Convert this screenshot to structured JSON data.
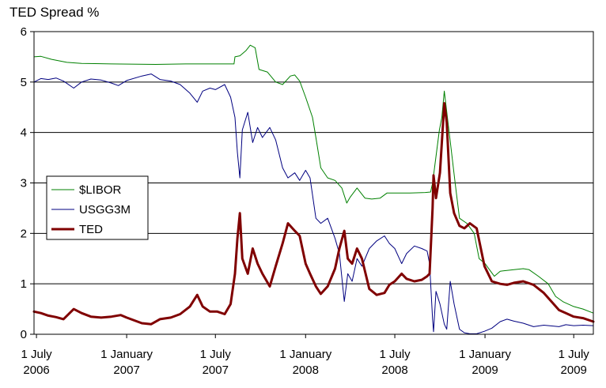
{
  "chart_data": {
    "type": "line",
    "title": "TED Spread %",
    "xlabel": "",
    "ylabel": "",
    "ylim": [
      0,
      6
    ],
    "yticks": [
      "0",
      "1",
      "2",
      "3",
      "4",
      "5",
      "6"
    ],
    "x_range": [
      "2006-06-26",
      "2009-08-10"
    ],
    "x_ticks": [
      {
        "date": "2006-07-01",
        "line1": "1 July",
        "line2": "2006"
      },
      {
        "date": "2007-01-01",
        "line1": "1 January",
        "line2": "2007"
      },
      {
        "date": "2007-07-01",
        "line1": "1 July",
        "line2": "2007"
      },
      {
        "date": "2008-01-01",
        "line1": "1 January",
        "line2": "2008"
      },
      {
        "date": "2008-07-01",
        "line1": "1 July",
        "line2": "2008"
      },
      {
        "date": "2009-01-01",
        "line1": "1 January",
        "line2": "2009"
      },
      {
        "date": "2009-07-01",
        "line1": "1 July",
        "line2": "2009"
      }
    ],
    "grid": "horizontal",
    "legend_position": "left-middle",
    "series": [
      {
        "name": "$LIBOR",
        "color": "#008000",
        "width": 1,
        "points": [
          [
            "2006-06-26",
            5.5
          ],
          [
            "2006-07-10",
            5.51
          ],
          [
            "2006-08-01",
            5.45
          ],
          [
            "2006-09-01",
            5.39
          ],
          [
            "2006-10-01",
            5.37
          ],
          [
            "2006-12-01",
            5.36
          ],
          [
            "2007-03-01",
            5.35
          ],
          [
            "2007-05-01",
            5.36
          ],
          [
            "2007-07-01",
            5.36
          ],
          [
            "2007-08-08",
            5.36
          ],
          [
            "2007-08-10",
            5.5
          ],
          [
            "2007-08-20",
            5.52
          ],
          [
            "2007-09-01",
            5.62
          ],
          [
            "2007-09-10",
            5.73
          ],
          [
            "2007-09-20",
            5.68
          ],
          [
            "2007-09-28",
            5.25
          ],
          [
            "2007-10-15",
            5.2
          ],
          [
            "2007-11-01",
            5.0
          ],
          [
            "2007-11-15",
            4.95
          ],
          [
            "2007-12-01",
            5.12
          ],
          [
            "2007-12-10",
            5.14
          ],
          [
            "2007-12-20",
            5.02
          ],
          [
            "2008-01-01",
            4.7
          ],
          [
            "2008-01-15",
            4.3
          ],
          [
            "2008-01-22",
            3.9
          ],
          [
            "2008-02-01",
            3.3
          ],
          [
            "2008-02-15",
            3.1
          ],
          [
            "2008-03-01",
            3.05
          ],
          [
            "2008-03-15",
            2.9
          ],
          [
            "2008-03-25",
            2.6
          ],
          [
            "2008-04-01",
            2.72
          ],
          [
            "2008-04-15",
            2.9
          ],
          [
            "2008-05-01",
            2.7
          ],
          [
            "2008-05-15",
            2.68
          ],
          [
            "2008-06-01",
            2.7
          ],
          [
            "2008-06-15",
            2.8
          ],
          [
            "2008-07-01",
            2.8
          ],
          [
            "2008-08-01",
            2.8
          ],
          [
            "2008-09-01",
            2.81
          ],
          [
            "2008-09-12",
            2.82
          ],
          [
            "2008-09-16",
            3.0
          ],
          [
            "2008-09-30",
            4.05
          ],
          [
            "2008-10-05",
            4.3
          ],
          [
            "2008-10-10",
            4.82
          ],
          [
            "2008-10-20",
            4.0
          ],
          [
            "2008-11-01",
            3.0
          ],
          [
            "2008-11-10",
            2.3
          ],
          [
            "2008-11-25",
            2.2
          ],
          [
            "2008-12-10",
            2.0
          ],
          [
            "2008-12-20",
            1.5
          ],
          [
            "2009-01-01",
            1.4
          ],
          [
            "2009-01-20",
            1.15
          ],
          [
            "2009-02-01",
            1.25
          ],
          [
            "2009-03-01",
            1.28
          ],
          [
            "2009-03-20",
            1.3
          ],
          [
            "2009-04-01",
            1.28
          ],
          [
            "2009-04-20",
            1.15
          ],
          [
            "2009-05-10",
            1.0
          ],
          [
            "2009-05-25",
            0.75
          ],
          [
            "2009-06-10",
            0.64
          ],
          [
            "2009-07-01",
            0.55
          ],
          [
            "2009-07-20",
            0.5
          ],
          [
            "2009-08-10",
            0.42
          ]
        ]
      },
      {
        "name": "USGG3M",
        "color": "#000080",
        "width": 1,
        "points": [
          [
            "2006-06-26",
            5.0
          ],
          [
            "2006-07-10",
            5.07
          ],
          [
            "2006-07-25",
            5.05
          ],
          [
            "2006-08-10",
            5.08
          ],
          [
            "2006-08-25",
            5.02
          ],
          [
            "2006-09-15",
            4.88
          ],
          [
            "2006-10-01",
            5.0
          ],
          [
            "2006-10-20",
            5.06
          ],
          [
            "2006-11-10",
            5.04
          ],
          [
            "2006-12-01",
            4.98
          ],
          [
            "2006-12-15",
            4.93
          ],
          [
            "2007-01-01",
            5.03
          ],
          [
            "2007-02-01",
            5.12
          ],
          [
            "2007-02-20",
            5.16
          ],
          [
            "2007-03-10",
            5.05
          ],
          [
            "2007-04-01",
            5.02
          ],
          [
            "2007-04-20",
            4.95
          ],
          [
            "2007-05-10",
            4.78
          ],
          [
            "2007-05-25",
            4.6
          ],
          [
            "2007-06-05",
            4.82
          ],
          [
            "2007-06-20",
            4.88
          ],
          [
            "2007-07-01",
            4.85
          ],
          [
            "2007-07-20",
            4.95
          ],
          [
            "2007-08-01",
            4.7
          ],
          [
            "2007-08-10",
            4.3
          ],
          [
            "2007-08-15",
            3.6
          ],
          [
            "2007-08-20",
            3.1
          ],
          [
            "2007-08-25",
            4.05
          ],
          [
            "2007-09-05",
            4.4
          ],
          [
            "2007-09-15",
            3.8
          ],
          [
            "2007-09-25",
            4.1
          ],
          [
            "2007-10-05",
            3.9
          ],
          [
            "2007-10-20",
            4.1
          ],
          [
            "2007-11-01",
            3.85
          ],
          [
            "2007-11-15",
            3.3
          ],
          [
            "2007-11-26",
            3.1
          ],
          [
            "2007-12-10",
            3.2
          ],
          [
            "2007-12-20",
            3.05
          ],
          [
            "2008-01-01",
            3.25
          ],
          [
            "2008-01-10",
            3.1
          ],
          [
            "2008-01-22",
            2.3
          ],
          [
            "2008-02-01",
            2.2
          ],
          [
            "2008-02-15",
            2.3
          ],
          [
            "2008-03-01",
            1.9
          ],
          [
            "2008-03-10",
            1.6
          ],
          [
            "2008-03-20",
            0.65
          ],
          [
            "2008-03-27",
            1.2
          ],
          [
            "2008-04-05",
            1.05
          ],
          [
            "2008-04-15",
            1.5
          ],
          [
            "2008-04-25",
            1.35
          ],
          [
            "2008-05-10",
            1.7
          ],
          [
            "2008-05-25",
            1.85
          ],
          [
            "2008-06-10",
            1.95
          ],
          [
            "2008-06-20",
            1.8
          ],
          [
            "2008-07-01",
            1.7
          ],
          [
            "2008-07-15",
            1.4
          ],
          [
            "2008-07-25",
            1.6
          ],
          [
            "2008-08-10",
            1.75
          ],
          [
            "2008-08-25",
            1.7
          ],
          [
            "2008-09-05",
            1.65
          ],
          [
            "2008-09-10",
            1.4
          ],
          [
            "2008-09-16",
            0.3
          ],
          [
            "2008-09-18",
            0.05
          ],
          [
            "2008-09-23",
            0.85
          ],
          [
            "2008-10-01",
            0.6
          ],
          [
            "2008-10-10",
            0.2
          ],
          [
            "2008-10-15",
            0.1
          ],
          [
            "2008-10-22",
            1.05
          ],
          [
            "2008-10-30",
            0.6
          ],
          [
            "2008-11-10",
            0.1
          ],
          [
            "2008-11-20",
            0.03
          ],
          [
            "2008-12-01",
            0.01
          ],
          [
            "2008-12-15",
            0.01
          ],
          [
            "2008-12-31",
            0.06
          ],
          [
            "2009-01-15",
            0.12
          ],
          [
            "2009-02-01",
            0.25
          ],
          [
            "2009-02-15",
            0.3
          ],
          [
            "2009-03-01",
            0.26
          ],
          [
            "2009-03-20",
            0.22
          ],
          [
            "2009-04-10",
            0.15
          ],
          [
            "2009-05-01",
            0.18
          ],
          [
            "2009-06-01",
            0.15
          ],
          [
            "2009-06-15",
            0.19
          ],
          [
            "2009-07-01",
            0.17
          ],
          [
            "2009-07-20",
            0.18
          ],
          [
            "2009-08-10",
            0.17
          ]
        ]
      },
      {
        "name": "TED",
        "color": "#800000",
        "width": 3,
        "points": [
          [
            "2006-06-26",
            0.45
          ],
          [
            "2006-07-10",
            0.42
          ],
          [
            "2006-07-25",
            0.37
          ],
          [
            "2006-08-10",
            0.34
          ],
          [
            "2006-08-25",
            0.3
          ],
          [
            "2006-09-15",
            0.5
          ],
          [
            "2006-10-01",
            0.42
          ],
          [
            "2006-10-20",
            0.35
          ],
          [
            "2006-11-10",
            0.33
          ],
          [
            "2006-12-01",
            0.35
          ],
          [
            "2006-12-20",
            0.38
          ],
          [
            "2007-01-01",
            0.33
          ],
          [
            "2007-02-01",
            0.22
          ],
          [
            "2007-02-20",
            0.2
          ],
          [
            "2007-03-10",
            0.3
          ],
          [
            "2007-04-01",
            0.33
          ],
          [
            "2007-04-20",
            0.4
          ],
          [
            "2007-05-10",
            0.55
          ],
          [
            "2007-05-25",
            0.78
          ],
          [
            "2007-06-05",
            0.55
          ],
          [
            "2007-06-20",
            0.45
          ],
          [
            "2007-07-05",
            0.45
          ],
          [
            "2007-07-20",
            0.4
          ],
          [
            "2007-08-01",
            0.6
          ],
          [
            "2007-08-10",
            1.2
          ],
          [
            "2007-08-15",
            1.9
          ],
          [
            "2007-08-20",
            2.4
          ],
          [
            "2007-08-25",
            1.5
          ],
          [
            "2007-09-05",
            1.2
          ],
          [
            "2007-09-15",
            1.7
          ],
          [
            "2007-09-25",
            1.4
          ],
          [
            "2007-10-05",
            1.2
          ],
          [
            "2007-10-20",
            0.95
          ],
          [
            "2007-11-01",
            1.35
          ],
          [
            "2007-11-15",
            1.8
          ],
          [
            "2007-11-26",
            2.2
          ],
          [
            "2007-12-10",
            2.05
          ],
          [
            "2007-12-20",
            1.95
          ],
          [
            "2008-01-01",
            1.4
          ],
          [
            "2008-01-10",
            1.2
          ],
          [
            "2008-01-22",
            0.95
          ],
          [
            "2008-02-01",
            0.8
          ],
          [
            "2008-02-15",
            0.95
          ],
          [
            "2008-03-01",
            1.3
          ],
          [
            "2008-03-10",
            1.7
          ],
          [
            "2008-03-20",
            2.05
          ],
          [
            "2008-03-27",
            1.5
          ],
          [
            "2008-04-05",
            1.4
          ],
          [
            "2008-04-15",
            1.7
          ],
          [
            "2008-04-25",
            1.5
          ],
          [
            "2008-05-10",
            0.9
          ],
          [
            "2008-05-25",
            0.78
          ],
          [
            "2008-06-10",
            0.82
          ],
          [
            "2008-06-20",
            0.98
          ],
          [
            "2008-07-01",
            1.05
          ],
          [
            "2008-07-15",
            1.2
          ],
          [
            "2008-07-25",
            1.1
          ],
          [
            "2008-08-10",
            1.05
          ],
          [
            "2008-08-25",
            1.08
          ],
          [
            "2008-09-05",
            1.15
          ],
          [
            "2008-09-10",
            1.2
          ],
          [
            "2008-09-16",
            2.5
          ],
          [
            "2008-09-18",
            3.15
          ],
          [
            "2008-09-23",
            2.7
          ],
          [
            "2008-10-01",
            3.2
          ],
          [
            "2008-10-10",
            4.58
          ],
          [
            "2008-10-15",
            4.2
          ],
          [
            "2008-10-22",
            2.8
          ],
          [
            "2008-10-30",
            2.4
          ],
          [
            "2008-11-10",
            2.15
          ],
          [
            "2008-11-20",
            2.1
          ],
          [
            "2008-12-01",
            2.2
          ],
          [
            "2008-12-15",
            2.1
          ],
          [
            "2008-12-31",
            1.35
          ],
          [
            "2009-01-15",
            1.05
          ],
          [
            "2009-02-01",
            1.0
          ],
          [
            "2009-02-15",
            0.98
          ],
          [
            "2009-03-01",
            1.02
          ],
          [
            "2009-03-20",
            1.05
          ],
          [
            "2009-04-10",
            0.98
          ],
          [
            "2009-05-01",
            0.82
          ],
          [
            "2009-06-01",
            0.48
          ],
          [
            "2009-06-15",
            0.42
          ],
          [
            "2009-07-01",
            0.35
          ],
          [
            "2009-07-20",
            0.32
          ],
          [
            "2009-08-10",
            0.25
          ]
        ]
      }
    ]
  }
}
